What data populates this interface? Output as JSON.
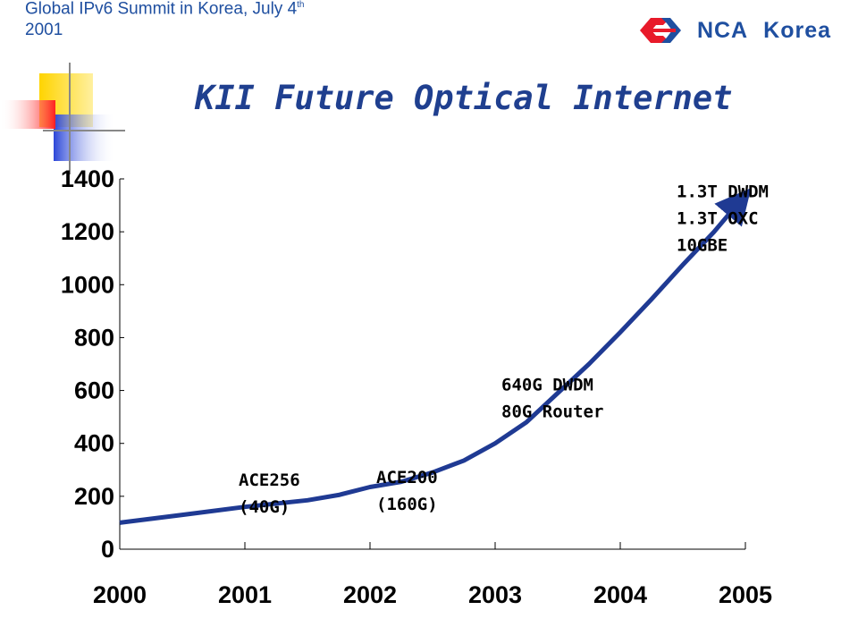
{
  "header": {
    "event_line1": "Global IPv6 Summit in Korea, July 4",
    "event_sup": "th",
    "event_line2": "2001",
    "brand": "NCA  Korea",
    "logo_icon": "nca-logo-icon"
  },
  "colors": {
    "accent": "#1f4fa0",
    "title": "#1f3f8f",
    "line": "#1f3a93"
  },
  "chart_data": {
    "type": "line",
    "title": "KII Future Optical Internet",
    "xlabel": "",
    "ylabel": "",
    "x_ticks": [
      "2000",
      "2001",
      "2002",
      "2003",
      "2004",
      "2005"
    ],
    "y_ticks": [
      "0",
      "200",
      "400",
      "600",
      "800",
      "1000",
      "1200",
      "1400"
    ],
    "xlim": [
      2000,
      2005
    ],
    "ylim": [
      0,
      1400
    ],
    "grid": false,
    "series": [
      {
        "x": [
          2000.0,
          2000.5,
          2001.0,
          2001.5,
          2001.75,
          2002.0,
          2002.25,
          2002.5,
          2002.75,
          2003.0,
          2003.25,
          2003.5,
          2003.75,
          2004.0,
          2004.25,
          2004.5,
          2004.75,
          2005.0
        ],
        "values": [
          100,
          130,
          160,
          185,
          205,
          235,
          255,
          290,
          335,
          400,
          480,
          590,
          700,
          820,
          945,
          1075,
          1200,
          1340
        ]
      }
    ],
    "annotations": [
      {
        "lines": [
          "ACE256",
          "(40G)"
        ],
        "x": 2000.95,
        "y": 240
      },
      {
        "lines": [
          "ACE200",
          "(160G)"
        ],
        "x": 2002.05,
        "y": 250
      },
      {
        "lines": [
          "640G DWDM",
          "80G Router"
        ],
        "x": 2003.05,
        "y": 600
      },
      {
        "lines": [
          "1.3T DWDM",
          "1.3T OXC",
          "10GBE"
        ],
        "x": 2004.45,
        "y": 1330
      }
    ]
  }
}
